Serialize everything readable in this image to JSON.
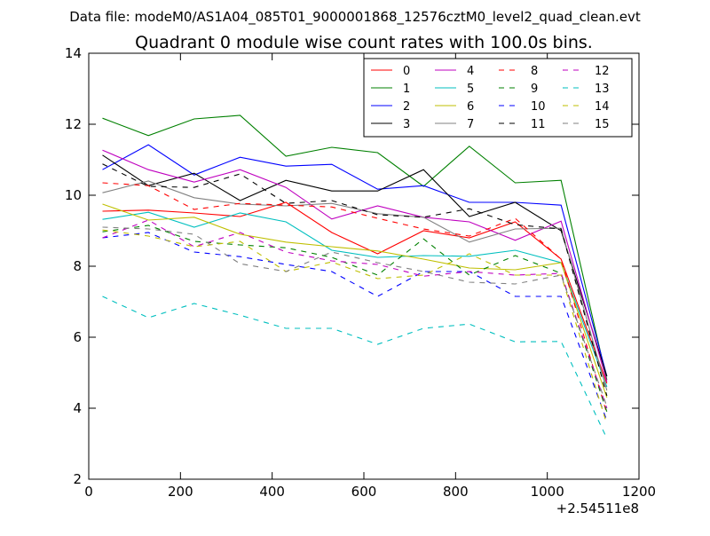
{
  "chart_data": {
    "type": "line",
    "suptitle": "Data file: modeM0/AS1A04_085T01_9000001868_12576cztM0_level2_quad_clean.evt",
    "title": "Quadrant 0 module wise count rates with 100.0s bins.",
    "xlabel": "",
    "ylabel": "",
    "x_offset_label": "+2.54511e8",
    "xlim": [
      0,
      1200
    ],
    "ylim": [
      2,
      14
    ],
    "xticks": [
      0,
      200,
      400,
      600,
      800,
      1000,
      1200
    ],
    "yticks": [
      2,
      4,
      6,
      8,
      10,
      12,
      14
    ],
    "grid": false,
    "legend_position": "top-right",
    "x": [
      30,
      130,
      230,
      330,
      430,
      530,
      630,
      730,
      830,
      930,
      1030,
      1130
    ],
    "series": [
      {
        "name": "0",
        "color": "#ff0000",
        "dash": "solid",
        "values": [
          9.55,
          9.58,
          9.5,
          9.4,
          9.8,
          8.95,
          8.35,
          9.0,
          8.8,
          9.25,
          8.2,
          4.7
        ]
      },
      {
        "name": "1",
        "color": "#008000",
        "dash": "solid",
        "values": [
          12.17,
          11.68,
          12.15,
          12.25,
          11.1,
          11.35,
          11.2,
          10.25,
          11.38,
          10.35,
          10.42,
          4.8
        ]
      },
      {
        "name": "2",
        "color": "#0000ff",
        "dash": "solid",
        "values": [
          10.72,
          11.42,
          10.57,
          11.07,
          10.82,
          10.87,
          10.17,
          10.27,
          9.8,
          9.8,
          9.72,
          4.9
        ]
      },
      {
        "name": "3",
        "color": "#000000",
        "dash": "solid",
        "values": [
          11.13,
          10.27,
          10.62,
          9.85,
          10.42,
          10.12,
          10.12,
          10.72,
          9.4,
          9.8,
          9.0,
          4.9
        ]
      },
      {
        "name": "4",
        "color": "#bf00bf",
        "dash": "solid",
        "values": [
          11.27,
          10.72,
          10.37,
          10.72,
          10.22,
          9.33,
          9.7,
          9.38,
          9.25,
          8.73,
          9.27,
          4.75
        ]
      },
      {
        "name": "5",
        "color": "#00bfbf",
        "dash": "solid",
        "values": [
          9.32,
          9.52,
          9.1,
          9.5,
          9.25,
          8.45,
          8.25,
          8.3,
          8.28,
          8.45,
          8.1,
          4.6
        ]
      },
      {
        "name": "6",
        "color": "#bfbf00",
        "dash": "solid",
        "values": [
          9.75,
          9.3,
          9.38,
          8.9,
          8.68,
          8.55,
          8.43,
          8.2,
          7.95,
          7.9,
          8.1,
          4.3
        ]
      },
      {
        "name": "7",
        "color": "#808080",
        "dash": "solid",
        "values": [
          10.07,
          10.4,
          9.93,
          9.75,
          9.7,
          9.77,
          9.48,
          9.38,
          8.68,
          9.05,
          9.07,
          4.5
        ]
      },
      {
        "name": "8",
        "color": "#ff0000",
        "dash": "dashed",
        "values": [
          10.35,
          10.27,
          9.6,
          9.77,
          9.72,
          9.67,
          9.35,
          9.05,
          8.85,
          9.35,
          8.2,
          3.85
        ]
      },
      {
        "name": "9",
        "color": "#008000",
        "dash": "dashed",
        "values": [
          8.97,
          9.15,
          8.7,
          8.6,
          8.52,
          8.25,
          7.75,
          8.77,
          7.75,
          8.3,
          7.8,
          3.9
        ]
      },
      {
        "name": "10",
        "color": "#0000ff",
        "dash": "dashed",
        "values": [
          8.8,
          8.95,
          8.4,
          8.27,
          8.05,
          7.85,
          7.15,
          7.85,
          7.85,
          7.15,
          7.15,
          3.65
        ]
      },
      {
        "name": "11",
        "color": "#000000",
        "dash": "dashed",
        "values": [
          10.88,
          10.25,
          10.22,
          10.6,
          9.77,
          9.85,
          9.45,
          9.38,
          9.62,
          9.17,
          9.05,
          4.35
        ]
      },
      {
        "name": "12",
        "color": "#bf00bf",
        "dash": "dashed",
        "values": [
          8.8,
          9.3,
          8.55,
          8.95,
          8.4,
          8.15,
          8.05,
          7.72,
          7.85,
          7.75,
          7.8,
          4.0
        ]
      },
      {
        "name": "13",
        "color": "#00bfbf",
        "dash": "dashed",
        "values": [
          7.15,
          6.55,
          6.95,
          6.62,
          6.25,
          6.25,
          5.8,
          6.25,
          6.37,
          5.87,
          5.88,
          3.15
        ]
      },
      {
        "name": "14",
        "color": "#bfbf00",
        "dash": "dashed",
        "values": [
          9.02,
          8.85,
          8.55,
          8.7,
          7.85,
          8.12,
          7.65,
          7.75,
          8.35,
          7.75,
          7.75,
          3.55
        ]
      },
      {
        "name": "15",
        "color": "#808080",
        "dash": "dashed",
        "values": [
          9.1,
          9.05,
          8.9,
          8.07,
          7.85,
          8.4,
          8.1,
          7.85,
          7.55,
          7.5,
          7.75,
          4.05
        ]
      }
    ]
  }
}
